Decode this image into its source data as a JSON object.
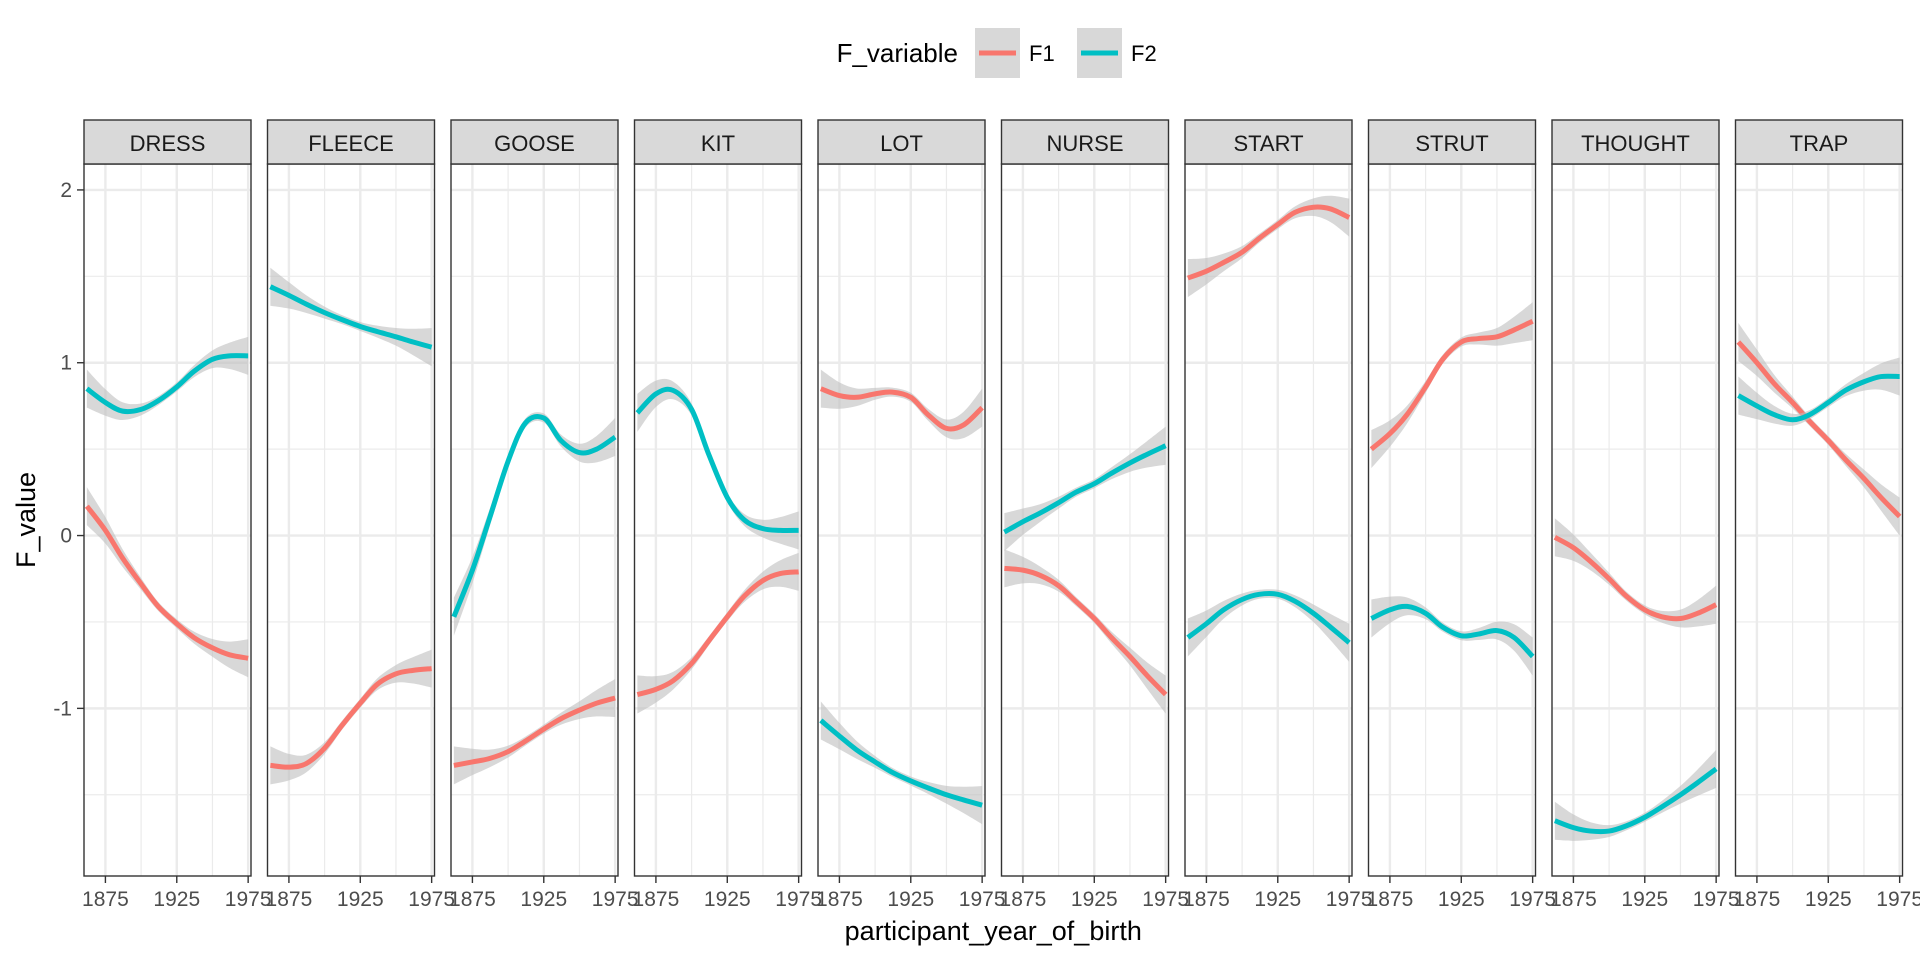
{
  "chart_data": {
    "type": "line",
    "facet_by": "lexical_set",
    "xlabel": "participant_year_of_birth",
    "ylabel": "F_value",
    "legend": {
      "title": "F_variable",
      "position": "top",
      "entries": [
        "F1",
        "F2"
      ]
    },
    "colors": {
      "F1": "#F8766D",
      "F2": "#00BFC4",
      "band": "#BEBEBE",
      "strip": "#D9D9D9",
      "grid": "#EBEBEB",
      "border": "#333333"
    },
    "x": [
      1862,
      1875,
      1887,
      1900,
      1912,
      1925,
      1937,
      1950,
      1962,
      1975
    ],
    "xlim": [
      1860,
      1977
    ],
    "ylim": [
      -1.97,
      2.15
    ],
    "x_ticks": [
      1875,
      1925,
      1975
    ],
    "y_ticks": [
      2,
      1,
      0,
      -1
    ],
    "y_tick_labels": [
      "2",
      "1",
      "0",
      "-1"
    ],
    "grid": true,
    "panels": [
      {
        "label": "DRESS",
        "series": [
          {
            "name": "F1",
            "values": [
              0.17,
              0.03,
              -0.13,
              -0.28,
              -0.41,
              -0.51,
              -0.59,
              -0.65,
              -0.69,
              -0.71
            ]
          },
          {
            "name": "F2",
            "values": [
              0.85,
              0.77,
              0.72,
              0.73,
              0.78,
              0.86,
              0.95,
              1.02,
              1.04,
              1.04
            ]
          }
        ]
      },
      {
        "label": "FLEECE",
        "series": [
          {
            "name": "F1",
            "values": [
              -1.33,
              -1.34,
              -1.32,
              -1.23,
              -1.1,
              -0.97,
              -0.86,
              -0.8,
              -0.78,
              -0.77
            ]
          },
          {
            "name": "F2",
            "values": [
              1.44,
              1.39,
              1.34,
              1.29,
              1.25,
              1.21,
              1.18,
              1.15,
              1.12,
              1.09
            ]
          }
        ]
      },
      {
        "label": "GOOSE",
        "series": [
          {
            "name": "F1",
            "values": [
              -1.33,
              -1.31,
              -1.29,
              -1.25,
              -1.19,
              -1.12,
              -1.06,
              -1.01,
              -0.97,
              -0.94
            ]
          },
          {
            "name": "F2",
            "values": [
              -0.47,
              -0.2,
              0.1,
              0.43,
              0.65,
              0.68,
              0.55,
              0.48,
              0.5,
              0.57
            ]
          }
        ]
      },
      {
        "label": "KIT",
        "series": [
          {
            "name": "F1",
            "values": [
              -0.92,
              -0.89,
              -0.84,
              -0.74,
              -0.61,
              -0.47,
              -0.35,
              -0.26,
              -0.22,
              -0.21
            ]
          },
          {
            "name": "F2",
            "values": [
              0.71,
              0.82,
              0.84,
              0.73,
              0.47,
              0.22,
              0.09,
              0.04,
              0.03,
              0.03
            ]
          }
        ]
      },
      {
        "label": "LOT",
        "series": [
          {
            "name": "F1",
            "values": [
              0.85,
              0.81,
              0.8,
              0.82,
              0.83,
              0.8,
              0.7,
              0.62,
              0.64,
              0.74
            ]
          },
          {
            "name": "F2",
            "values": [
              -1.07,
              -1.16,
              -1.24,
              -1.31,
              -1.37,
              -1.42,
              -1.46,
              -1.5,
              -1.53,
              -1.56
            ]
          }
        ]
      },
      {
        "label": "NURSE",
        "series": [
          {
            "name": "F1",
            "values": [
              -0.19,
              -0.2,
              -0.23,
              -0.29,
              -0.38,
              -0.48,
              -0.59,
              -0.7,
              -0.81,
              -0.92
            ]
          },
          {
            "name": "F2",
            "values": [
              0.02,
              0.08,
              0.13,
              0.19,
              0.25,
              0.3,
              0.36,
              0.42,
              0.47,
              0.52
            ]
          }
        ]
      },
      {
        "label": "START",
        "series": [
          {
            "name": "F1",
            "values": [
              1.49,
              1.53,
              1.58,
              1.64,
              1.72,
              1.8,
              1.87,
              1.9,
              1.89,
              1.84
            ]
          },
          {
            "name": "F2",
            "values": [
              -0.59,
              -0.51,
              -0.43,
              -0.37,
              -0.34,
              -0.34,
              -0.38,
              -0.45,
              -0.53,
              -0.62
            ]
          }
        ]
      },
      {
        "label": "STRUT",
        "series": [
          {
            "name": "F1",
            "values": [
              0.5,
              0.59,
              0.7,
              0.86,
              1.02,
              1.12,
              1.14,
              1.15,
              1.19,
              1.24
            ]
          },
          {
            "name": "F2",
            "values": [
              -0.48,
              -0.43,
              -0.41,
              -0.45,
              -0.53,
              -0.58,
              -0.57,
              -0.55,
              -0.59,
              -0.7
            ]
          }
        ]
      },
      {
        "label": "THOUGHT",
        "series": [
          {
            "name": "F1",
            "values": [
              -0.01,
              -0.07,
              -0.15,
              -0.25,
              -0.35,
              -0.43,
              -0.47,
              -0.48,
              -0.45,
              -0.4
            ]
          },
          {
            "name": "F2",
            "values": [
              -1.65,
              -1.69,
              -1.71,
              -1.71,
              -1.68,
              -1.63,
              -1.57,
              -1.5,
              -1.43,
              -1.35
            ]
          }
        ]
      },
      {
        "label": "TRAP",
        "series": [
          {
            "name": "F1",
            "values": [
              1.12,
              1.0,
              0.88,
              0.77,
              0.66,
              0.55,
              0.44,
              0.33,
              0.22,
              0.11
            ]
          },
          {
            "name": "F2",
            "values": [
              0.81,
              0.75,
              0.7,
              0.67,
              0.7,
              0.77,
              0.84,
              0.89,
              0.92,
              0.92
            ]
          }
        ]
      }
    ]
  }
}
